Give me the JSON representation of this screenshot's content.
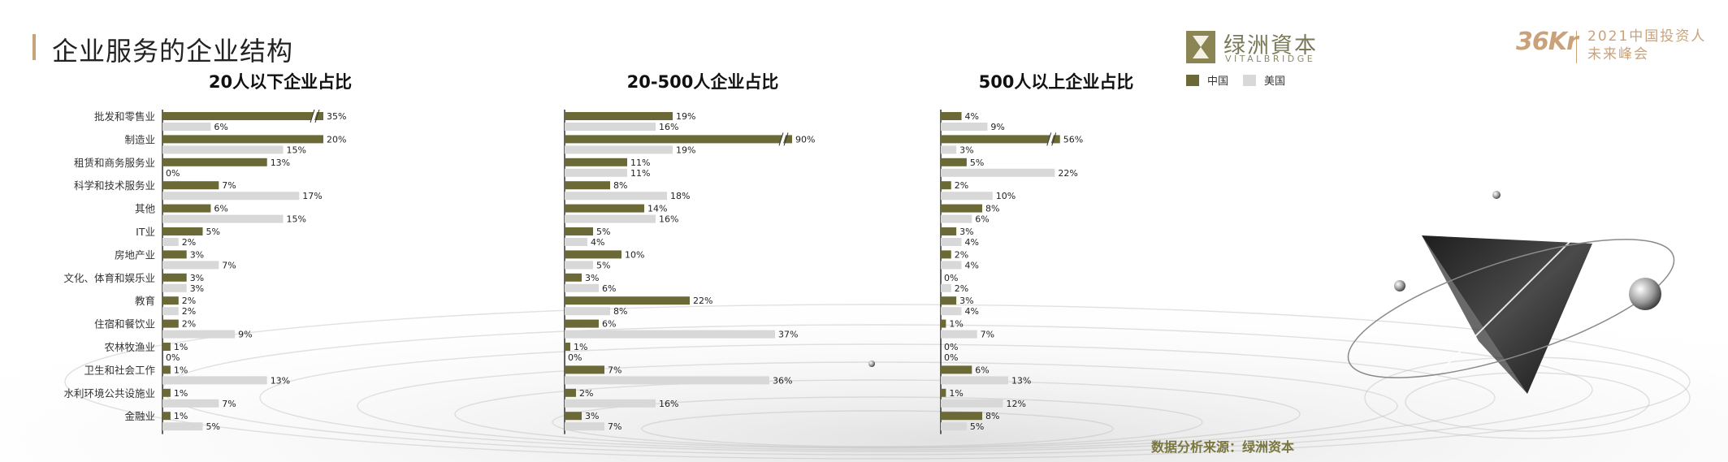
{
  "page": {
    "title": "企业服务的企业结构",
    "source": "数据分析来源：绿洲资本"
  },
  "brand": {
    "logo_cn": "绿洲資本",
    "logo_en": "VITALBRIDGE",
    "kr_logo": "36Kr",
    "event_line1": "2021中国投资人",
    "event_line2": "未来峰会"
  },
  "legend": {
    "china": "中国",
    "usa": "美国"
  },
  "colors": {
    "china": "#6b6a36",
    "usa": "#d8d8d8",
    "accent": "#c8a27a"
  },
  "categories": [
    "批发和零售业",
    "制造业",
    "租赁和商务服务业",
    "科学和技术服务业",
    "其他",
    "IT业",
    "房地产业",
    "文化、体育和娱乐业",
    "教育",
    "住宿和餐饮业",
    "农林牧渔业",
    "卫生和社会工作",
    "水利环境公共设施业",
    "金融业"
  ],
  "chart_data": [
    {
      "type": "bar",
      "orientation": "horizontal",
      "title": "20人以下企业占比",
      "categories": [
        "批发和零售业",
        "制造业",
        "租赁和商务服务业",
        "科学和技术服务业",
        "其他",
        "IT业",
        "房地产业",
        "文化、体育和娱乐业",
        "教育",
        "住宿和餐饮业",
        "农林牧渔业",
        "卫生和社会工作",
        "水利环境公共设施业",
        "金融业"
      ],
      "series": [
        {
          "name": "中国",
          "values": [
            35,
            20,
            13,
            7,
            6,
            5,
            3,
            3,
            2,
            2,
            1,
            1,
            1,
            1
          ],
          "labels": [
            "35%",
            "20%",
            "13%",
            "7%",
            "6%",
            "5%",
            "3%",
            "3%",
            "2%",
            "2%",
            "1%",
            "1%",
            "1%",
            "1%"
          ]
        },
        {
          "name": "美国",
          "values": [
            6,
            15,
            0,
            17,
            15,
            2,
            7,
            3,
            2,
            9,
            0,
            13,
            7,
            5
          ],
          "labels": [
            "6%",
            "15%",
            "0%",
            "17%",
            "15%",
            "2%",
            "7%",
            "3%",
            "2%",
            "9%",
            "0%",
            "13%",
            "7%",
            "5%"
          ]
        }
      ],
      "broken_axis": [
        {
          "series": 0,
          "category": 0,
          "display_value": 20
        }
      ]
    },
    {
      "type": "bar",
      "orientation": "horizontal",
      "title": "20-500人企业占比",
      "categories": [
        "批发和零售业",
        "制造业",
        "租赁和商务服务业",
        "科学和技术服务业",
        "其他",
        "IT业",
        "房地产业",
        "文化、体育和娱乐业",
        "教育",
        "住宿和餐饮业",
        "农林牧渔业",
        "卫生和社会工作",
        "水利环境公共设施业",
        "金融业"
      ],
      "series": [
        {
          "name": "中国",
          "values": [
            19,
            90,
            11,
            8,
            14,
            5,
            10,
            3,
            22,
            6,
            1,
            7,
            2,
            3
          ],
          "labels": [
            "19%",
            "90%",
            "11%",
            "8%",
            "14%",
            "5%",
            "10%",
            "3%",
            "22%",
            "6%",
            "1%",
            "7%",
            "2%",
            "3%"
          ]
        },
        {
          "name": "美国",
          "values": [
            16,
            19,
            11,
            18,
            16,
            4,
            5,
            6,
            8,
            37,
            0,
            36,
            16,
            7
          ],
          "labels": [
            "16%",
            "19%",
            "11%",
            "18%",
            "16%",
            "4%",
            "5%",
            "6%",
            "8%",
            "37%",
            "0%",
            "36%",
            "16%",
            "7%"
          ]
        }
      ],
      "broken_axis": [
        {
          "series": 0,
          "category": 1,
          "display_value": 40
        }
      ]
    },
    {
      "type": "bar",
      "orientation": "horizontal",
      "title": "500人以上企业占比",
      "categories": [
        "批发和零售业",
        "制造业",
        "租赁和商务服务业",
        "科学和技术服务业",
        "其他",
        "IT业",
        "房地产业",
        "文化、体育和娱乐业",
        "教育",
        "住宿和餐饮业",
        "农林牧渔业",
        "卫生和社会工作",
        "水利环境公共设施业",
        "金融业"
      ],
      "series": [
        {
          "name": "中国",
          "values": [
            4,
            56,
            5,
            2,
            8,
            3,
            2,
            0,
            3,
            1,
            0,
            6,
            1,
            8
          ],
          "labels": [
            "4%",
            "56%",
            "5%",
            "2%",
            "8%",
            "3%",
            "2%",
            "0%",
            "3%",
            "1%",
            "0%",
            "6%",
            "1%",
            "8%"
          ]
        },
        {
          "name": "美国",
          "values": [
            9,
            3,
            22,
            10,
            6,
            4,
            4,
            2,
            4,
            7,
            0,
            13,
            12,
            5
          ],
          "labels": [
            "9%",
            "3%",
            "22%",
            "10%",
            "6%",
            "4%",
            "4%",
            "2%",
            "4%",
            "7%",
            "0%",
            "13%",
            "12%",
            "5%"
          ]
        }
      ],
      "broken_axis": [
        {
          "series": 0,
          "category": 1,
          "display_value": 23
        }
      ]
    }
  ]
}
